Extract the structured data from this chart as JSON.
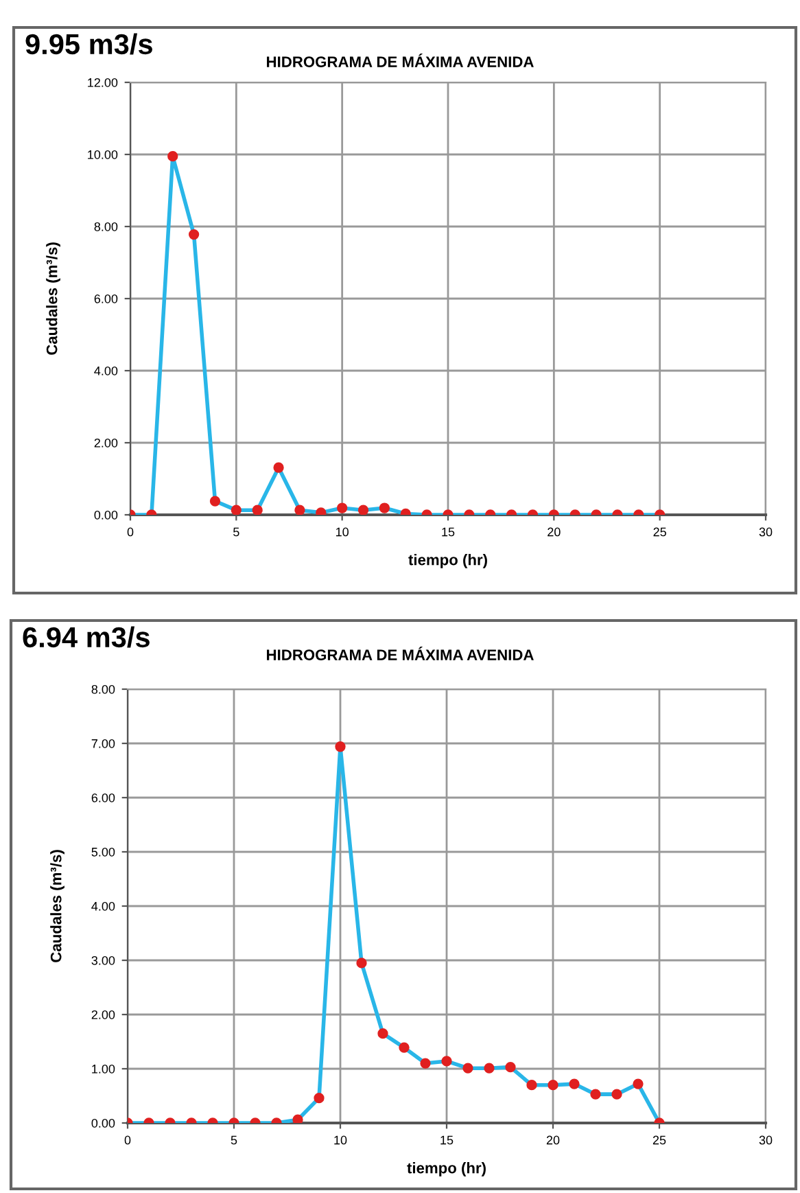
{
  "chart_data": [
    {
      "type": "line",
      "title": "HIDROGRAMA DE MÁXIMA AVENIDA",
      "annotations": [
        "9.95 m3/s"
      ],
      "xlabel": "tiempo (hr)",
      "ylabel": "Caudales (m³/s)",
      "x": [
        0,
        1,
        2,
        3,
        4,
        5,
        6,
        7,
        8,
        9,
        10,
        11,
        12,
        13,
        14,
        15,
        16,
        17,
        18,
        19,
        20,
        21,
        22,
        23,
        24,
        25
      ],
      "series": [
        {
          "color": "#29b6e8",
          "values": [
            0,
            0,
            9.95,
            7.78,
            0.38,
            0.13,
            0.13,
            1.31,
            0.13,
            0.06,
            0.19,
            0.13,
            0.19,
            0.03,
            0,
            0,
            0,
            0,
            0,
            0,
            0,
            0,
            0,
            0,
            0,
            0
          ]
        }
      ],
      "marker": "circle",
      "line_style": "solid",
      "grid": true,
      "xlim": [
        0,
        30
      ],
      "xticks": [
        0,
        5,
        10,
        15,
        20,
        25,
        30
      ],
      "ylim": [
        0,
        12
      ],
      "yticks": [
        {
          "value": 0,
          "label": "0.00"
        },
        {
          "value": 2,
          "label": "2.00"
        },
        {
          "value": 4,
          "label": "4.00"
        },
        {
          "value": 6,
          "label": "6.00"
        },
        {
          "value": 8,
          "label": "8.00"
        },
        {
          "value": 10,
          "label": "10.00"
        },
        {
          "value": 12,
          "label": "12.00"
        }
      ]
    },
    {
      "type": "line",
      "title": "HIDROGRAMA DE MÁXIMA AVENIDA",
      "annotations": [
        "6.94 m3/s"
      ],
      "xlabel": "tiempo (hr)",
      "ylabel": "Caudales (m³/s)",
      "x": [
        0,
        1,
        2,
        3,
        4,
        5,
        6,
        7,
        8,
        9,
        10,
        11,
        12,
        13,
        14,
        15,
        16,
        17,
        18,
        19,
        20,
        21,
        22,
        23,
        24,
        25
      ],
      "series": [
        {
          "color": "#29b6e8",
          "values": [
            0,
            0,
            0,
            0,
            0,
            0,
            0,
            0,
            0.06,
            0.46,
            6.94,
            2.95,
            1.65,
            1.39,
            1.1,
            1.14,
            1.01,
            1.01,
            1.03,
            0.7,
            0.7,
            0.72,
            0.53,
            0.53,
            0.72,
            0
          ]
        }
      ],
      "marker": "circle",
      "line_style": "solid",
      "grid": true,
      "xlim": [
        0,
        30
      ],
      "xticks": [
        0,
        5,
        10,
        15,
        20,
        25,
        30
      ],
      "ylim": [
        0,
        8
      ],
      "yticks": [
        {
          "value": 0,
          "label": "0.00"
        },
        {
          "value": 1,
          "label": "1.00"
        },
        {
          "value": 2,
          "label": "2.00"
        },
        {
          "value": 3,
          "label": "3.00"
        },
        {
          "value": 4,
          "label": "4.00"
        },
        {
          "value": 5,
          "label": "5.00"
        },
        {
          "value": 6,
          "label": "6.00"
        },
        {
          "value": 7,
          "label": "7.00"
        },
        {
          "value": 8,
          "label": "8.00"
        }
      ]
    }
  ]
}
